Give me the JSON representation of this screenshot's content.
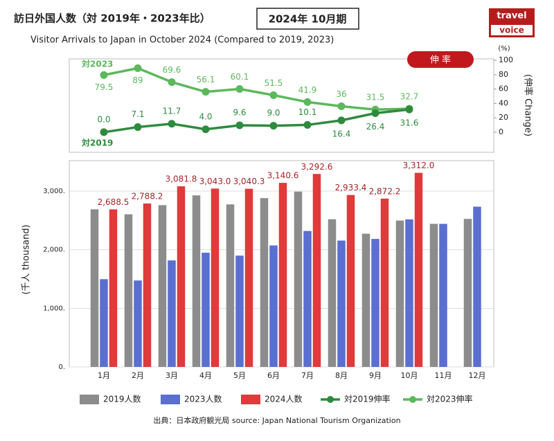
{
  "header": {
    "title": "訪日外国人数（対 2019年・2023年比）",
    "subtitle": "Visitor Arrivals to Japan in October 2024 (Compared to 2019, 2023)",
    "period": "2024年 10月期",
    "logo": [
      "travel",
      "voice"
    ]
  },
  "chart_data": [
    {
      "type": "line",
      "badge": "伸 率",
      "unit": "(%)",
      "y_label": "(伸率 Change)",
      "categories": [
        "1月",
        "2月",
        "3月",
        "4月",
        "5月",
        "6月",
        "7月",
        "8月",
        "9月",
        "10月"
      ],
      "annotations": [
        "対2023",
        "対2019"
      ],
      "series": [
        {
          "name": "対2023伸率",
          "color": "#5cb85c",
          "values": [
            79.5,
            89.0,
            69.6,
            56.1,
            60.1,
            51.5,
            41.9,
            36.0,
            31.5,
            32.7
          ]
        },
        {
          "name": "対2019伸率",
          "color": "#2e8b3e",
          "values": [
            0.0,
            7.1,
            11.7,
            4.0,
            9.6,
            9.0,
            10.1,
            16.4,
            26.4,
            31.6
          ],
          "value_labels": [
            "0.0",
            "7.1",
            "11.7",
            "4.0",
            "9.6",
            "9.0",
            "10.1",
            "16.4",
            "26.4",
            "31.6"
          ]
        }
      ],
      "ylim": [
        -28,
        102
      ],
      "yticks": [
        0,
        20,
        40,
        60,
        80,
        100
      ]
    },
    {
      "type": "bar",
      "y_label": "(千人 thousand)",
      "categories": [
        "1月",
        "2月",
        "3月",
        "4月",
        "5月",
        "6月",
        "7月",
        "8月",
        "9月",
        "10月",
        "11月",
        "12月"
      ],
      "series": [
        {
          "name": "2019人数",
          "color": "#8c8c8c",
          "values": [
            2689,
            2604,
            2760,
            2927,
            2773,
            2880,
            2991,
            2520,
            2273,
            2497,
            2441,
            2526
          ]
        },
        {
          "name": "2023人数",
          "color": "#5a6fd0",
          "values": [
            1497,
            1475,
            1817,
            1949,
            1899,
            2073,
            2320,
            2156,
            2184,
            2517,
            2441,
            2734
          ]
        },
        {
          "name": "2024人数",
          "color": "#e03a3a",
          "values": [
            2688.5,
            2788.2,
            3081.8,
            3043.0,
            3040.3,
            3140.6,
            3292.6,
            2933.4,
            2872.2,
            3312.0,
            null,
            null
          ],
          "value_labels": [
            "2,688.5",
            "2,788.2",
            "3,081.8",
            "3,043.0",
            "3,040.3",
            "3,140.6",
            "3,292.6",
            "2,933.4",
            "2,872.2",
            "3,312.0",
            null,
            null
          ]
        }
      ],
      "ylim": [
        0,
        3520
      ],
      "yticks": [
        {
          "value": 0,
          "label": "0."
        },
        {
          "value": 1000,
          "label": "1,000."
        },
        {
          "value": 2000,
          "label": "2,000."
        },
        {
          "value": 3000,
          "label": "3,000."
        }
      ],
      "grid": true
    }
  ],
  "source": "出典：日本政府観光局  source: Japan National Tourism Organization"
}
